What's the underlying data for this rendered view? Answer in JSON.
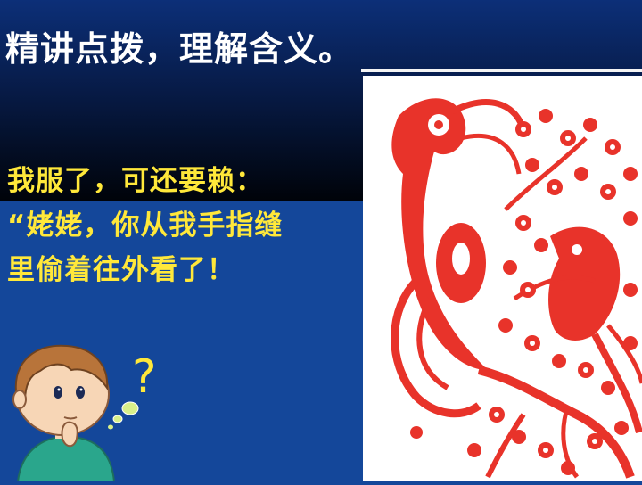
{
  "title": "精讲点拨，理解含义。",
  "quote_lines": [
    "我服了，可还要赖：",
    "“姥姥，你从我手指缝",
    "里偷着往外看了！"
  ],
  "question_mark": "?",
  "image_semantic": "red-paper-cut-phoenix-plum-blossom",
  "colors": {
    "title": "#ffffff",
    "quote": "#ffe83a",
    "papercut": "#e8332a",
    "background": "#14479a"
  }
}
